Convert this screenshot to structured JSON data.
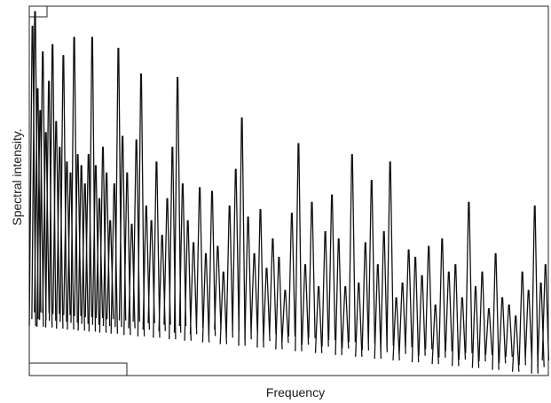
{
  "chart_data": {
    "type": "line",
    "title": "",
    "xlabel": "Frequency",
    "ylabel": "Spectral intensity.",
    "legend": "none",
    "grid": false,
    "xlim": [
      0,
      1
    ],
    "ylim": [
      0,
      1
    ],
    "ticks": "none",
    "line_color": "#111111",
    "peaks": [
      {
        "x": 0.001,
        "y": 0.95
      },
      {
        "x": 0.006,
        "y": 0.99
      },
      {
        "x": 0.011,
        "y": 0.78
      },
      {
        "x": 0.016,
        "y": 0.72
      },
      {
        "x": 0.021,
        "y": 0.88
      },
      {
        "x": 0.027,
        "y": 0.66
      },
      {
        "x": 0.033,
        "y": 0.8
      },
      {
        "x": 0.04,
        "y": 0.9
      },
      {
        "x": 0.047,
        "y": 0.69
      },
      {
        "x": 0.054,
        "y": 0.62
      },
      {
        "x": 0.061,
        "y": 0.87
      },
      {
        "x": 0.068,
        "y": 0.58
      },
      {
        "x": 0.075,
        "y": 0.55
      },
      {
        "x": 0.082,
        "y": 0.92
      },
      {
        "x": 0.089,
        "y": 0.6
      },
      {
        "x": 0.096,
        "y": 0.57
      },
      {
        "x": 0.103,
        "y": 0.52
      },
      {
        "x": 0.11,
        "y": 0.6
      },
      {
        "x": 0.117,
        "y": 0.92
      },
      {
        "x": 0.124,
        "y": 0.57
      },
      {
        "x": 0.131,
        "y": 0.48
      },
      {
        "x": 0.138,
        "y": 0.62
      },
      {
        "x": 0.145,
        "y": 0.55
      },
      {
        "x": 0.152,
        "y": 0.42
      },
      {
        "x": 0.16,
        "y": 0.52
      },
      {
        "x": 0.168,
        "y": 0.89
      },
      {
        "x": 0.176,
        "y": 0.65
      },
      {
        "x": 0.185,
        "y": 0.55
      },
      {
        "x": 0.194,
        "y": 0.41
      },
      {
        "x": 0.203,
        "y": 0.64
      },
      {
        "x": 0.212,
        "y": 0.82
      },
      {
        "x": 0.222,
        "y": 0.46
      },
      {
        "x": 0.232,
        "y": 0.42
      },
      {
        "x": 0.242,
        "y": 0.58
      },
      {
        "x": 0.253,
        "y": 0.38
      },
      {
        "x": 0.263,
        "y": 0.48
      },
      {
        "x": 0.273,
        "y": 0.62
      },
      {
        "x": 0.283,
        "y": 0.81
      },
      {
        "x": 0.293,
        "y": 0.52
      },
      {
        "x": 0.303,
        "y": 0.42
      },
      {
        "x": 0.314,
        "y": 0.36
      },
      {
        "x": 0.326,
        "y": 0.51
      },
      {
        "x": 0.338,
        "y": 0.33
      },
      {
        "x": 0.35,
        "y": 0.5
      },
      {
        "x": 0.361,
        "y": 0.35
      },
      {
        "x": 0.372,
        "y": 0.28
      },
      {
        "x": 0.384,
        "y": 0.46
      },
      {
        "x": 0.396,
        "y": 0.56
      },
      {
        "x": 0.408,
        "y": 0.7
      },
      {
        "x": 0.42,
        "y": 0.43
      },
      {
        "x": 0.432,
        "y": 0.33
      },
      {
        "x": 0.444,
        "y": 0.45
      },
      {
        "x": 0.456,
        "y": 0.29
      },
      {
        "x": 0.468,
        "y": 0.37
      },
      {
        "x": 0.48,
        "y": 0.32
      },
      {
        "x": 0.492,
        "y": 0.23
      },
      {
        "x": 0.505,
        "y": 0.44
      },
      {
        "x": 0.518,
        "y": 0.63
      },
      {
        "x": 0.531,
        "y": 0.3
      },
      {
        "x": 0.544,
        "y": 0.47
      },
      {
        "x": 0.557,
        "y": 0.24
      },
      {
        "x": 0.57,
        "y": 0.39
      },
      {
        "x": 0.583,
        "y": 0.49
      },
      {
        "x": 0.596,
        "y": 0.37
      },
      {
        "x": 0.609,
        "y": 0.24
      },
      {
        "x": 0.622,
        "y": 0.6
      },
      {
        "x": 0.635,
        "y": 0.25
      },
      {
        "x": 0.648,
        "y": 0.36
      },
      {
        "x": 0.66,
        "y": 0.53
      },
      {
        "x": 0.672,
        "y": 0.3
      },
      {
        "x": 0.684,
        "y": 0.39
      },
      {
        "x": 0.696,
        "y": 0.58
      },
      {
        "x": 0.708,
        "y": 0.21
      },
      {
        "x": 0.72,
        "y": 0.25
      },
      {
        "x": 0.732,
        "y": 0.34
      },
      {
        "x": 0.745,
        "y": 0.32
      },
      {
        "x": 0.758,
        "y": 0.27
      },
      {
        "x": 0.771,
        "y": 0.35
      },
      {
        "x": 0.784,
        "y": 0.19
      },
      {
        "x": 0.797,
        "y": 0.37
      },
      {
        "x": 0.81,
        "y": 0.28
      },
      {
        "x": 0.823,
        "y": 0.3
      },
      {
        "x": 0.836,
        "y": 0.21
      },
      {
        "x": 0.849,
        "y": 0.47
      },
      {
        "x": 0.862,
        "y": 0.24
      },
      {
        "x": 0.875,
        "y": 0.28
      },
      {
        "x": 0.888,
        "y": 0.18
      },
      {
        "x": 0.901,
        "y": 0.33
      },
      {
        "x": 0.914,
        "y": 0.21
      },
      {
        "x": 0.927,
        "y": 0.19
      },
      {
        "x": 0.94,
        "y": 0.16
      },
      {
        "x": 0.953,
        "y": 0.28
      },
      {
        "x": 0.965,
        "y": 0.23
      },
      {
        "x": 0.977,
        "y": 0.46
      },
      {
        "x": 0.989,
        "y": 0.25
      },
      {
        "x": 0.998,
        "y": 0.3
      }
    ]
  }
}
